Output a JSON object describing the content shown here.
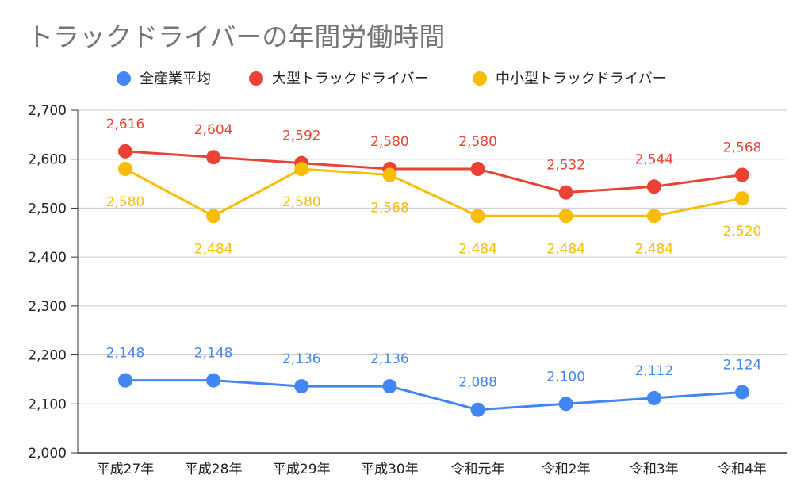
{
  "chart_data": {
    "type": "line",
    "title": "トラックドライバーの年間労働時間",
    "categories": [
      "平成27年",
      "平成28年",
      "平成29年",
      "平成30年",
      "令和元年",
      "令和2年",
      "令和3年",
      "令和4年"
    ],
    "series": [
      {
        "name": "全産業平均",
        "color": "#4285F4",
        "values": [
          2148,
          2148,
          2136,
          2136,
          2088,
          2100,
          2112,
          2124
        ],
        "labels": [
          "2,148",
          "2,148",
          "2,136",
          "2,136",
          "2,088",
          "2,100",
          "2,112",
          "2,124"
        ],
        "label_side": [
          "above",
          "above",
          "above",
          "above",
          "above",
          "above",
          "above",
          "above"
        ]
      },
      {
        "name": "大型トラックドライバー",
        "color": "#EA4335",
        "values": [
          2616,
          2604,
          2592,
          2580,
          2580,
          2532,
          2544,
          2568
        ],
        "labels": [
          "2,616",
          "2,604",
          "2,592",
          "2,580",
          "2,580",
          "2,532",
          "2,544",
          "2,568"
        ],
        "label_side": [
          "above",
          "above",
          "above",
          "above",
          "above",
          "above",
          "above",
          "above"
        ]
      },
      {
        "name": "中小型トラックドライバー",
        "color": "#FBBC04",
        "values": [
          2580,
          2484,
          2580,
          2568,
          2484,
          2484,
          2484,
          2520
        ],
        "labels": [
          "2,580",
          "2,484",
          "2,580",
          "2,568",
          "2,484",
          "2,484",
          "2,484",
          "2,520"
        ],
        "label_side": [
          "below",
          "below",
          "below",
          "below",
          "below",
          "below",
          "below",
          "below"
        ]
      }
    ],
    "ylim": [
      2000,
      2700
    ],
    "yticks": [
      2000,
      2100,
      2200,
      2300,
      2400,
      2500,
      2600,
      2700
    ],
    "ytick_labels": [
      "2,000",
      "2,100",
      "2,200",
      "2,300",
      "2,400",
      "2,500",
      "2,600",
      "2,700"
    ],
    "xlabel": "",
    "ylabel": "",
    "grid": true,
    "legend_position": "top"
  }
}
